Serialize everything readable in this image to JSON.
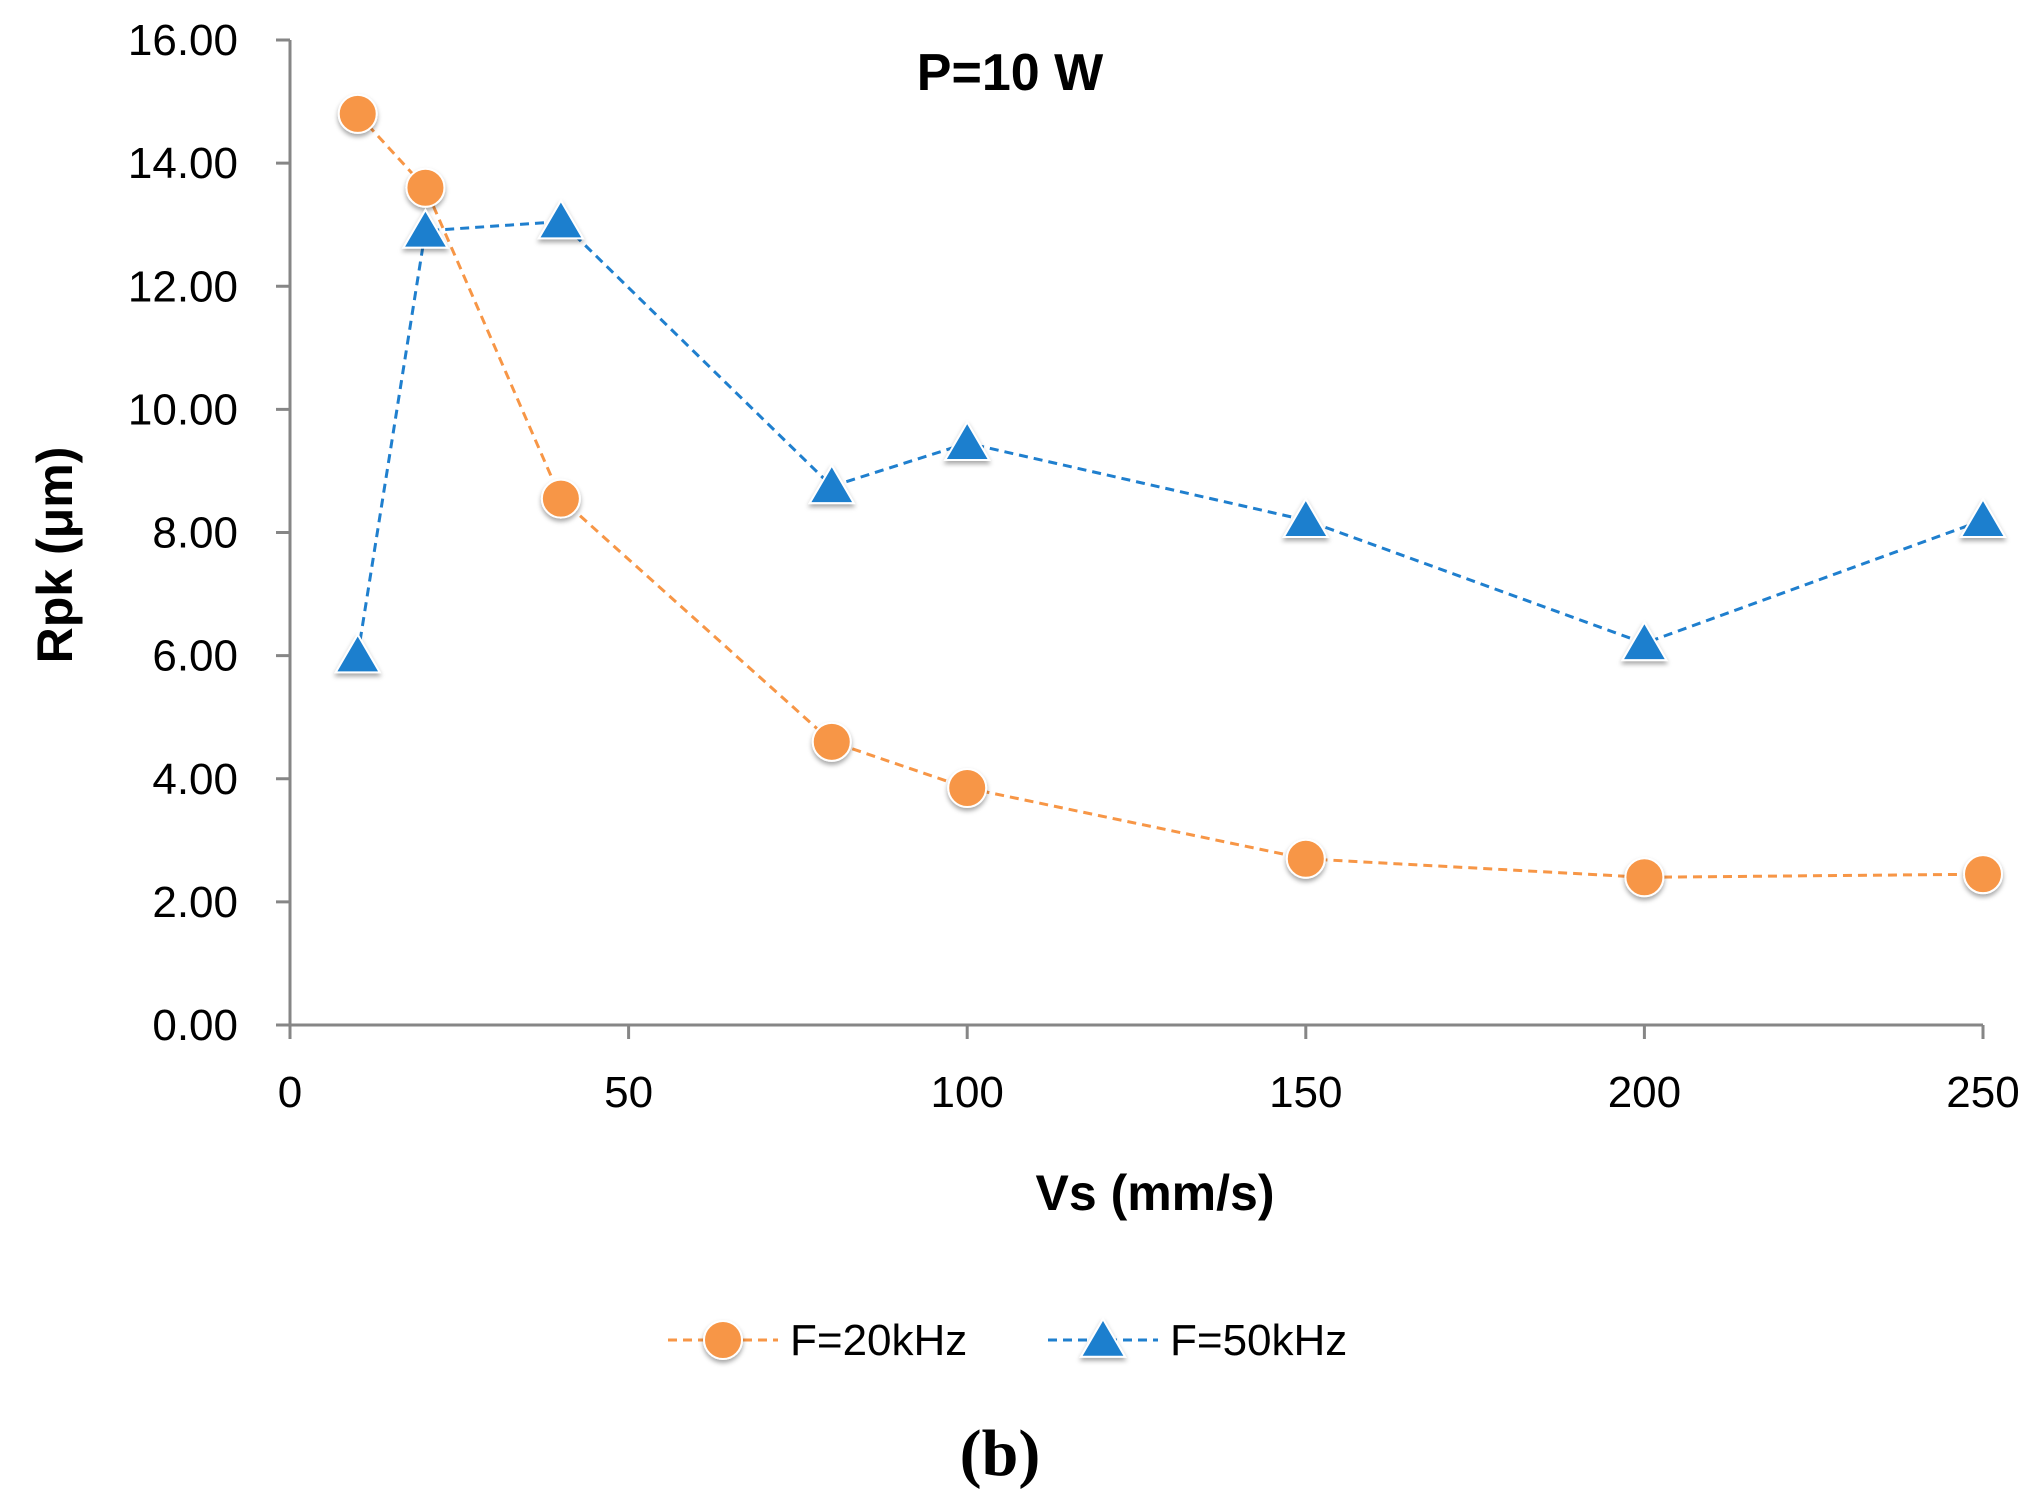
{
  "chart_data": {
    "type": "line",
    "title": "P=10 W",
    "xlabel": "Vs (mm/s)",
    "ylabel": "Rpk (μm)",
    "xlim": [
      0,
      250
    ],
    "ylim": [
      0,
      16
    ],
    "xticks": [
      0,
      50,
      100,
      150,
      200,
      250
    ],
    "xtick_labels": [
      "0",
      "50",
      "100",
      "150",
      "200",
      "250"
    ],
    "yticks": [
      0,
      2,
      4,
      6,
      8,
      10,
      12,
      14,
      16
    ],
    "ytick_labels": [
      "0.00",
      "2.00",
      "4.00",
      "6.00",
      "8.00",
      "10.00",
      "12.00",
      "14.00",
      "16.00"
    ],
    "grid": false,
    "legend_position": "bottom",
    "series": [
      {
        "name": "F=20kHz",
        "marker": "circle",
        "color": "#F79646",
        "x": [
          10,
          20,
          40,
          80,
          100,
          150,
          200,
          250
        ],
        "y": [
          14.8,
          13.6,
          8.55,
          4.6,
          3.85,
          2.7,
          2.4,
          2.45
        ]
      },
      {
        "name": "F=50kHz",
        "marker": "triangle",
        "color": "#1F7FCE",
        "x": [
          10,
          20,
          40,
          80,
          100,
          150,
          200,
          250
        ],
        "y": [
          6.0,
          12.9,
          13.05,
          8.75,
          9.45,
          8.2,
          6.2,
          8.2
        ]
      }
    ]
  },
  "caption": "(b)"
}
